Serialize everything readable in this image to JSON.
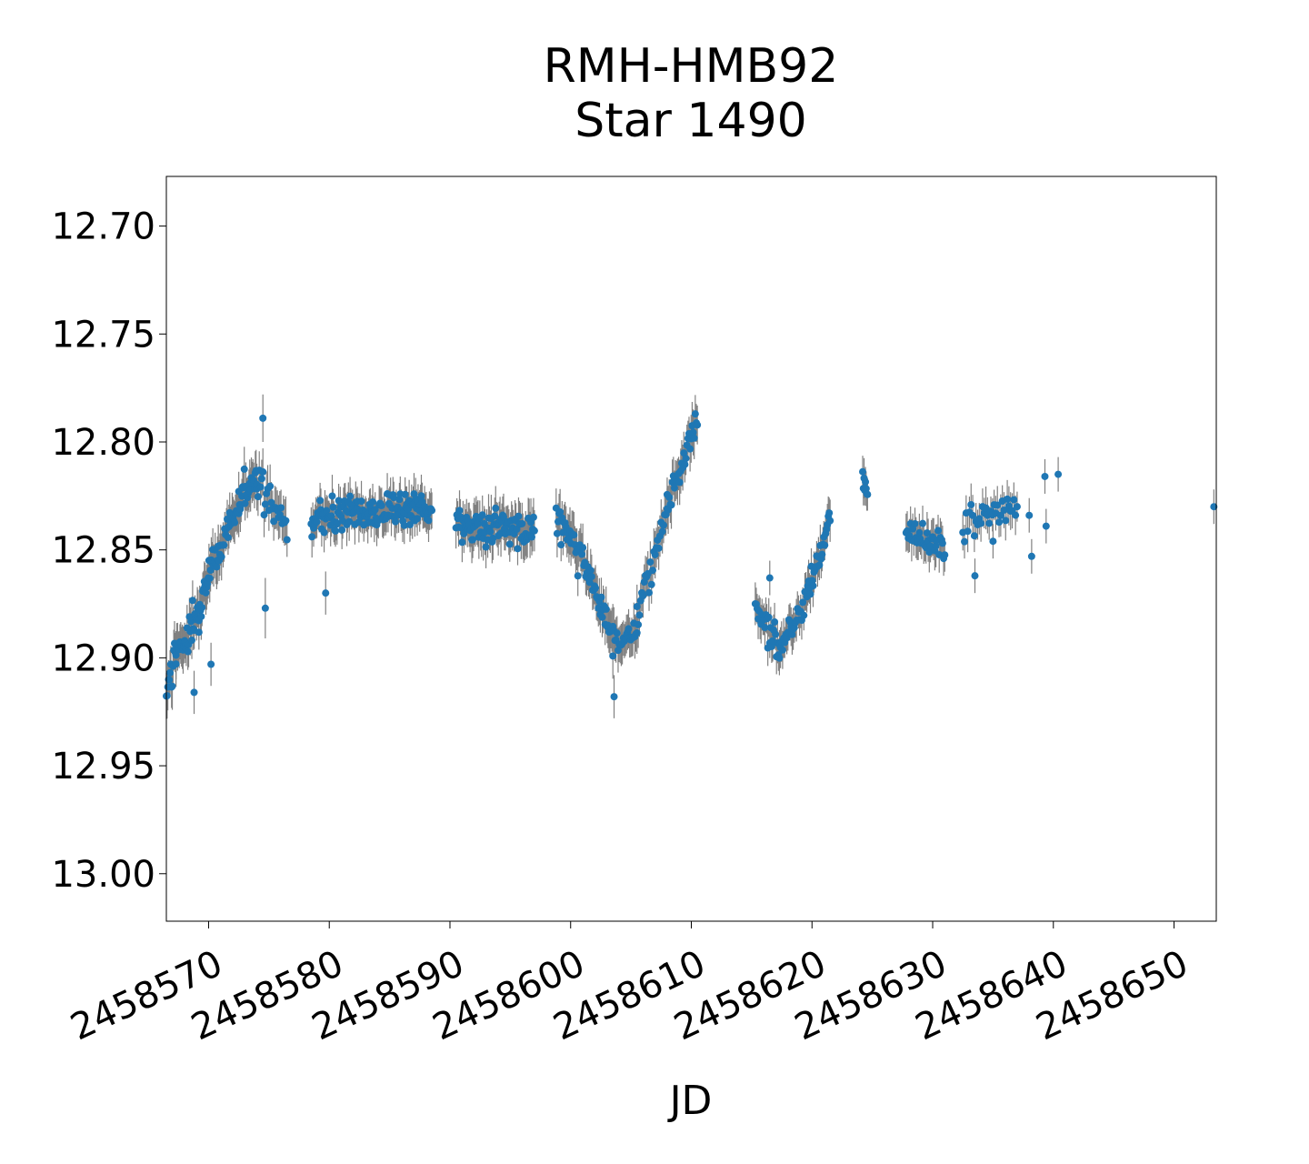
{
  "chart_data": {
    "type": "scatter",
    "title": "RMH-HMB92",
    "subtitle": "Star 1490",
    "xlabel": "JD",
    "ylabel": "",
    "xlim": [
      2458566.5,
      2458653.5
    ],
    "ylim": [
      13.022,
      12.677
    ],
    "y_inverted": true,
    "grid": false,
    "x_ticks": [
      2458570,
      2458580,
      2458590,
      2458600,
      2458610,
      2458620,
      2458630,
      2458640,
      2458650
    ],
    "x_tick_labels": [
      "2458570",
      "2458580",
      "2458590",
      "2458600",
      "2458610",
      "2458620",
      "2458630",
      "2458640",
      "2458650"
    ],
    "y_ticks": [
      12.7,
      12.75,
      12.8,
      12.85,
      12.9,
      12.95,
      13.0
    ],
    "y_tick_labels": [
      "12.70",
      "12.75",
      "12.80",
      "12.85",
      "12.90",
      "12.95",
      "13.00"
    ],
    "marker_color": "#1f77b4",
    "errorbar_color": "#808080",
    "segments": [
      {
        "x0": 2458566.5,
        "x1": 2458567.3,
        "y0": 12.915,
        "y1": 12.9,
        "n": 14,
        "spread": 0.014,
        "err": 0.009
      },
      {
        "x0": 2458567.3,
        "x1": 2458569.2,
        "y0": 12.9,
        "y1": 12.88,
        "n": 30,
        "spread": 0.016,
        "err": 0.009
      },
      {
        "x0": 2458569.2,
        "x1": 2458570.8,
        "y0": 12.88,
        "y1": 12.85,
        "n": 26,
        "spread": 0.012,
        "err": 0.009
      },
      {
        "x0": 2458570.8,
        "x1": 2458572.5,
        "y0": 12.85,
        "y1": 12.828,
        "n": 26,
        "spread": 0.01,
        "err": 0.009
      },
      {
        "x0": 2458572.5,
        "x1": 2458574.0,
        "y0": 12.828,
        "y1": 12.815,
        "n": 24,
        "spread": 0.012,
        "err": 0.009
      },
      {
        "x0": 2458574.0,
        "x1": 2458576.5,
        "y0": 12.82,
        "y1": 12.835,
        "n": 26,
        "spread": 0.014,
        "err": 0.009
      },
      {
        "x0": 2458578.5,
        "x1": 2458588.5,
        "y0": 12.836,
        "y1": 12.83,
        "n": 150,
        "spread": 0.012,
        "err": 0.008
      },
      {
        "x0": 2458590.5,
        "x1": 2458597.0,
        "y0": 12.838,
        "y1": 12.842,
        "n": 90,
        "spread": 0.012,
        "err": 0.009
      },
      {
        "x0": 2458598.8,
        "x1": 2458601.5,
        "y0": 12.833,
        "y1": 12.86,
        "n": 34,
        "spread": 0.012,
        "err": 0.009
      },
      {
        "x0": 2458601.5,
        "x1": 2458603.5,
        "y0": 12.86,
        "y1": 12.892,
        "n": 26,
        "spread": 0.012,
        "err": 0.009
      },
      {
        "x0": 2458603.5,
        "x1": 2458605.5,
        "y0": 12.892,
        "y1": 12.888,
        "n": 24,
        "spread": 0.012,
        "err": 0.009
      },
      {
        "x0": 2458605.5,
        "x1": 2458608.0,
        "y0": 12.88,
        "y1": 12.835,
        "n": 26,
        "spread": 0.012,
        "err": 0.009
      },
      {
        "x0": 2458608.0,
        "x1": 2458610.5,
        "y0": 12.83,
        "y1": 12.79,
        "n": 30,
        "spread": 0.01,
        "err": 0.009
      },
      {
        "x0": 2458615.3,
        "x1": 2458617.3,
        "y0": 12.878,
        "y1": 12.895,
        "n": 26,
        "spread": 0.012,
        "err": 0.008
      },
      {
        "x0": 2458617.3,
        "x1": 2458619.5,
        "y0": 12.895,
        "y1": 12.875,
        "n": 26,
        "spread": 0.012,
        "err": 0.008
      },
      {
        "x0": 2458619.5,
        "x1": 2458621.5,
        "y0": 12.872,
        "y1": 12.835,
        "n": 28,
        "spread": 0.01,
        "err": 0.008
      },
      {
        "x0": 2458624.2,
        "x1": 2458624.6,
        "y0": 12.815,
        "y1": 12.825,
        "n": 8,
        "spread": 0.008,
        "err": 0.008
      },
      {
        "x0": 2458627.8,
        "x1": 2458631.0,
        "y0": 12.842,
        "y1": 12.848,
        "n": 36,
        "spread": 0.01,
        "err": 0.008
      },
      {
        "x0": 2458632.5,
        "x1": 2458637.0,
        "y0": 12.838,
        "y1": 12.83,
        "n": 34,
        "spread": 0.012,
        "err": 0.008
      }
    ],
    "isolated_points": [
      {
        "x": 2458574.7,
        "y": 12.877,
        "err": 0.014
      },
      {
        "x": 2458574.5,
        "y": 12.789,
        "err": 0.011
      },
      {
        "x": 2458579.7,
        "y": 12.87,
        "err": 0.01
      },
      {
        "x": 2458570.2,
        "y": 12.903,
        "err": 0.01
      },
      {
        "x": 2458568.8,
        "y": 12.916,
        "err": 0.01
      },
      {
        "x": 2458603.6,
        "y": 12.918,
        "err": 0.01
      },
      {
        "x": 2458638.0,
        "y": 12.834,
        "err": 0.008
      },
      {
        "x": 2458638.2,
        "y": 12.853,
        "err": 0.008
      },
      {
        "x": 2458639.3,
        "y": 12.816,
        "err": 0.008
      },
      {
        "x": 2458639.4,
        "y": 12.839,
        "err": 0.008
      },
      {
        "x": 2458640.4,
        "y": 12.815,
        "err": 0.008
      },
      {
        "x": 2458653.3,
        "y": 12.83,
        "err": 0.008
      },
      {
        "x": 2458616.5,
        "y": 12.863,
        "err": 0.008
      },
      {
        "x": 2458633.5,
        "y": 12.862,
        "err": 0.008
      },
      {
        "x": 2458635.0,
        "y": 12.846,
        "err": 0.008
      }
    ]
  }
}
